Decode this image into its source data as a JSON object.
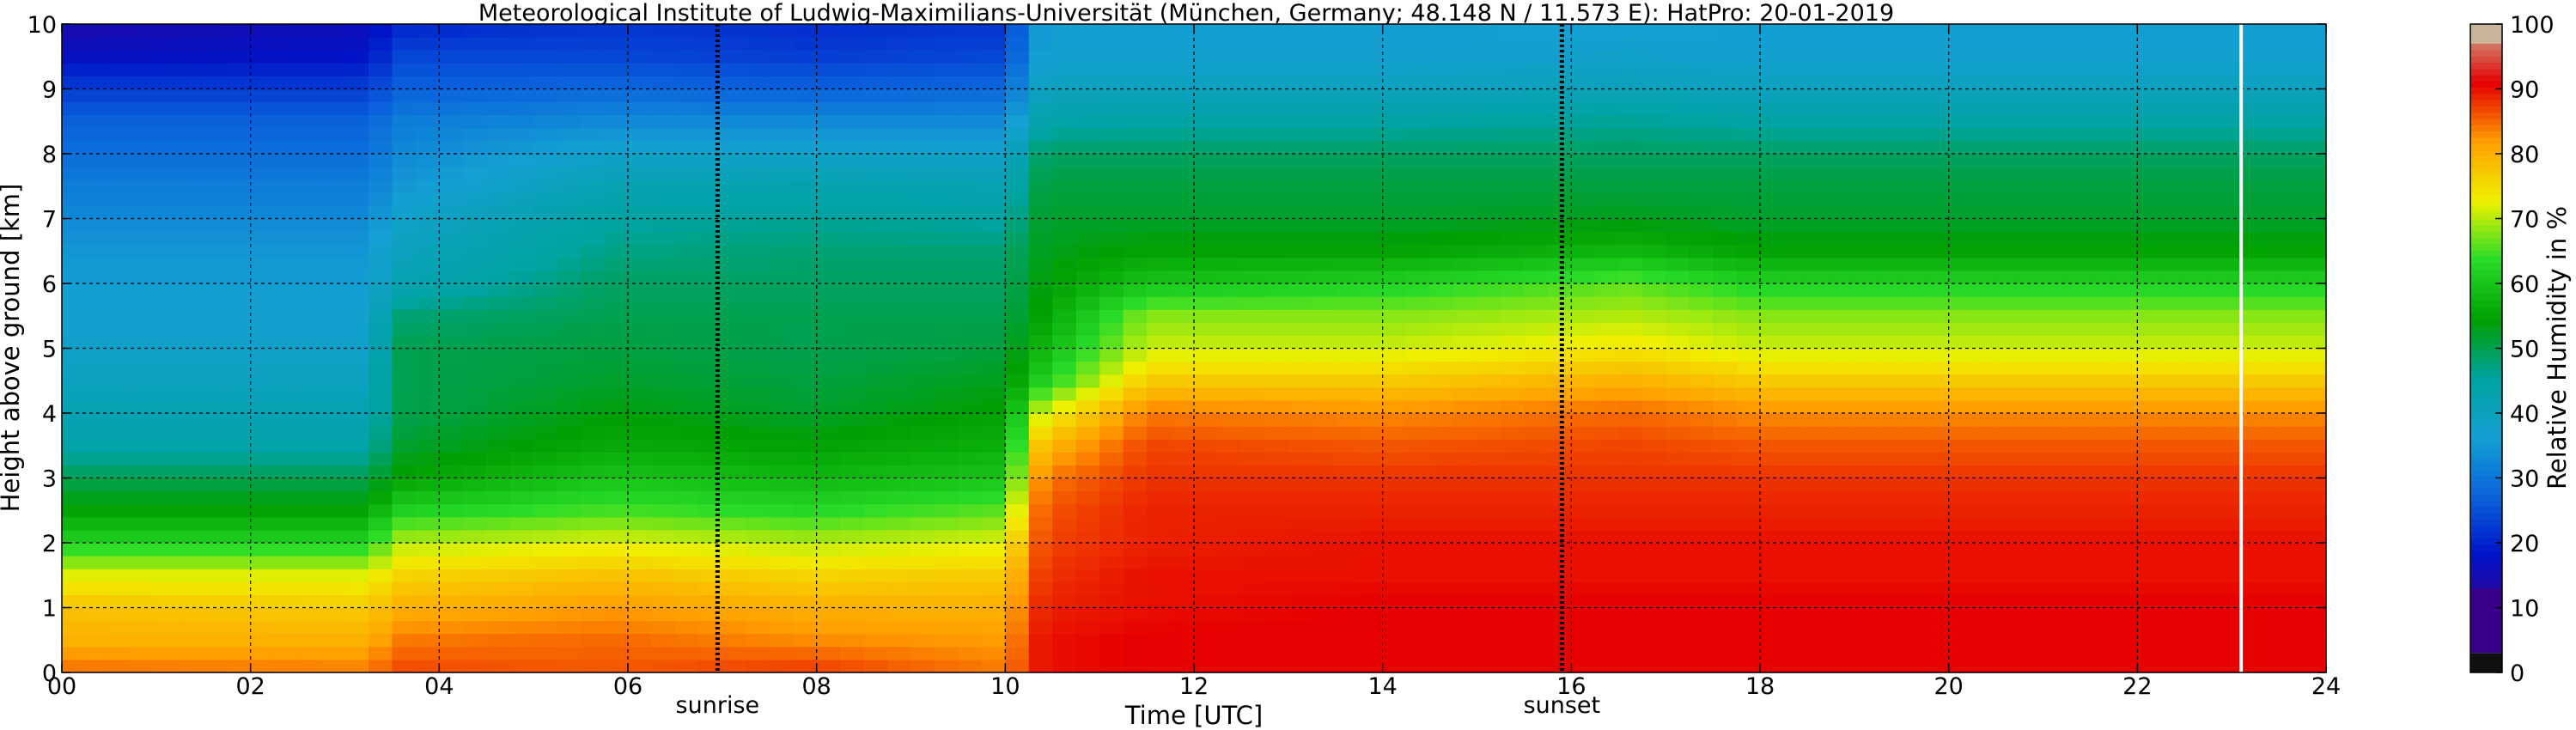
{
  "chart_data": {
    "type": "heatmap",
    "title": "Meteorological Institute of Ludwig-Maximilians-Universität (München, Germany; 48.148 N / 11.573 E):    HatPro: 20-01-2019",
    "xlabel": "Time [UTC]",
    "ylabel": "Height above ground [km]",
    "xlim": [
      0,
      24
    ],
    "ylim": [
      0,
      10
    ],
    "x_ticks": [
      "00",
      "02",
      "04",
      "06",
      "08",
      "10",
      "12",
      "14",
      "16",
      "18",
      "20",
      "22",
      "24"
    ],
    "y_ticks": [
      "0",
      "1",
      "2",
      "3",
      "4",
      "5",
      "6",
      "7",
      "8",
      "9",
      "10"
    ],
    "grid": true,
    "markers": [
      {
        "label": "sunrise",
        "x": 6.95
      },
      {
        "label": "sunset",
        "x": 15.9
      }
    ],
    "colorbar": {
      "label": "Relative Humidity in %",
      "range": [
        0,
        100
      ],
      "ticks": [
        "0",
        "10",
        "20",
        "30",
        "40",
        "50",
        "60",
        "70",
        "80",
        "90",
        "100"
      ],
      "colors": [
        "#101010",
        "#3a008c",
        "#0014c8",
        "#0a64dc",
        "#14a0d2",
        "#00a3a0",
        "#00a000",
        "#28dc28",
        "#f0f000",
        "#ffa000",
        "#e60000",
        "#c8b496"
      ]
    },
    "missing_data_x": 23.1,
    "profiles": {
      "heights_km": [
        0,
        0.5,
        1,
        1.5,
        2,
        2.5,
        3,
        3.5,
        4,
        4.5,
        5,
        5.5,
        6,
        6.5,
        7,
        7.5,
        8,
        8.5,
        9,
        9.5,
        10
      ],
      "data": [
        {
          "time": 0,
          "rh": [
            85,
            80,
            78,
            72,
            62,
            55,
            50,
            44,
            42,
            40,
            38,
            37,
            36,
            35,
            33,
            31,
            29,
            27,
            23,
            17,
            14
          ]
        },
        {
          "time": 3.2,
          "rh": [
            84,
            80,
            77,
            72,
            62,
            55,
            50,
            44,
            42,
            40,
            38,
            37,
            36,
            35,
            33,
            31,
            29,
            27,
            23,
            18,
            16
          ]
        },
        {
          "time": 3.6,
          "rh": [
            87,
            84,
            80,
            76,
            70,
            62,
            55,
            52,
            50,
            50,
            50,
            48,
            42,
            40,
            38,
            35,
            33,
            31,
            27,
            24,
            20
          ]
        },
        {
          "time": 5.8,
          "rh": [
            86,
            85,
            82,
            78,
            72,
            65,
            60,
            56,
            54,
            52,
            51,
            50,
            49,
            47,
            45,
            42,
            38,
            33,
            28,
            24,
            22
          ]
        },
        {
          "time": 7.9,
          "rh": [
            88,
            83,
            80,
            76,
            70,
            63,
            58,
            55,
            52,
            51,
            50,
            50,
            49,
            48,
            46,
            43,
            38,
            33,
            27,
            23,
            21
          ]
        },
        {
          "time": 10.0,
          "rh": [
            84,
            82,
            80,
            77,
            72,
            66,
            60,
            57,
            55,
            53,
            51,
            50,
            49,
            48,
            45,
            42,
            38,
            33,
            28,
            24,
            22
          ]
        },
        {
          "time": 10.4,
          "rh": [
            90,
            90,
            89,
            88,
            87,
            86,
            84,
            79,
            72,
            62,
            58,
            55,
            54,
            53,
            52,
            51,
            49,
            44,
            40,
            37,
            36
          ]
        },
        {
          "time": 11.5,
          "rh": [
            91,
            91,
            90,
            90,
            89,
            89,
            88,
            87,
            84,
            77,
            71,
            68,
            60,
            55,
            52,
            51,
            49,
            45,
            40,
            37,
            36
          ]
        },
        {
          "time": 14.0,
          "rh": [
            91,
            91,
            91,
            90,
            90,
            89,
            88,
            86,
            83,
            77,
            71,
            68,
            62,
            55,
            52,
            51,
            49,
            45,
            40,
            37,
            36
          ]
        },
        {
          "time": 16.6,
          "rh": [
            91,
            91,
            91,
            90,
            90,
            89,
            88,
            87,
            85,
            80,
            74,
            70,
            66,
            58,
            53,
            51,
            49,
            46,
            41,
            38,
            36
          ]
        },
        {
          "time": 18.0,
          "rh": [
            91,
            91,
            91,
            90,
            90,
            89,
            88,
            86,
            83,
            77,
            71,
            68,
            62,
            55,
            52,
            51,
            49,
            45,
            40,
            37,
            36
          ]
        },
        {
          "time": 24.0,
          "rh": [
            91,
            91,
            91,
            90,
            90,
            89,
            88,
            86,
            83,
            77,
            71,
            68,
            62,
            55,
            52,
            51,
            49,
            45,
            40,
            37,
            36
          ]
        }
      ]
    }
  }
}
